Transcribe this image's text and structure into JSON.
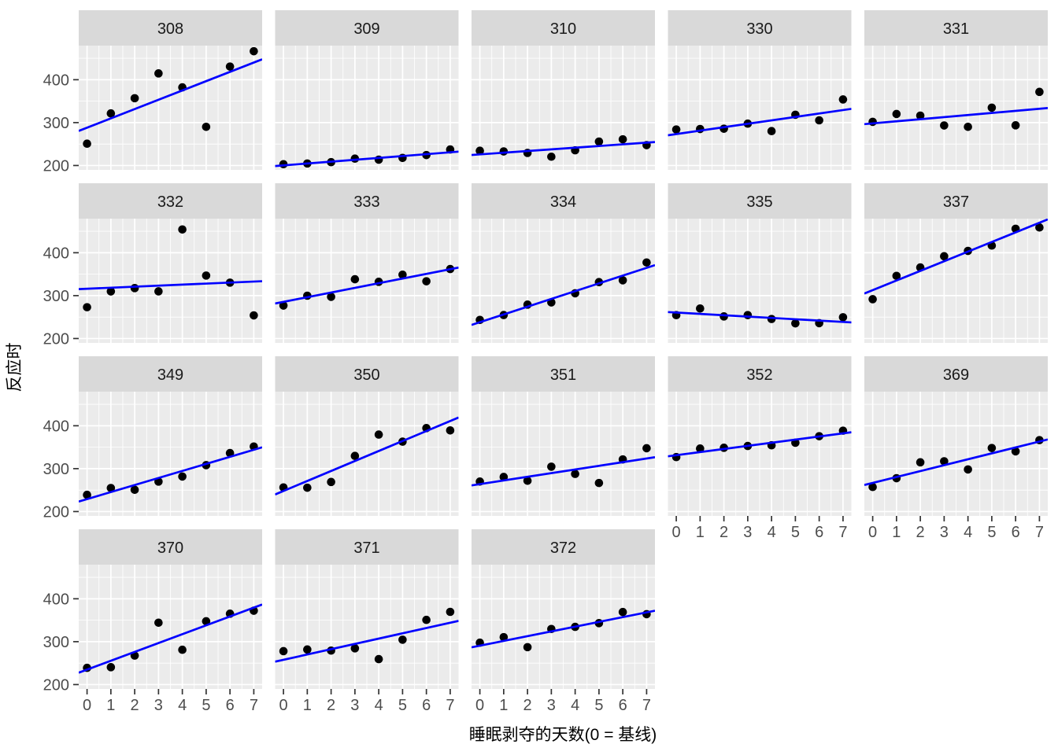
{
  "chart_data": {
    "type": "scatter",
    "title": "",
    "xlabel": "睡眠剥夺的天数(0 = 基线)",
    "ylabel": "反应时",
    "facet_variable": "subject-id",
    "facet_columns": 5,
    "x": [
      0,
      1,
      2,
      3,
      4,
      5,
      6,
      7
    ],
    "x_ticks": [
      "0",
      "1",
      "2",
      "3",
      "4",
      "5",
      "6",
      "7"
    ],
    "y_ticks": [
      "200",
      "300",
      "400"
    ],
    "x_domain": [
      -0.35,
      7.35
    ],
    "y_domain": [
      189.8,
      479.5
    ],
    "x_minor": [
      0.5,
      1.5,
      2.5,
      3.5,
      4.5,
      5.5,
      6.5
    ],
    "y_minor": [
      250,
      350,
      450
    ],
    "grid": "major and minor, white on grey panel",
    "legend_position": "none",
    "smooth": "per-facet linear regression line (lm, no confidence band, full panel range)",
    "facets": [
      {
        "label": "308",
        "values": [
          250.8,
          321.4,
          356.9,
          414.7,
          382.2,
          290.1,
          430.6,
          466.4
        ]
      },
      {
        "label": "309",
        "values": [
          203.0,
          204.7,
          207.7,
          216.0,
          213.6,
          217.7,
          224.3,
          237.3
        ]
      },
      {
        "label": "310",
        "values": [
          234.3,
          232.8,
          229.3,
          220.5,
          235.4,
          255.8,
          261.0,
          247.5
        ]
      },
      {
        "label": "330",
        "values": [
          283.9,
          285.1,
          285.8,
          297.6,
          280.2,
          318.3,
          305.3,
          354.0
        ]
      },
      {
        "label": "331",
        "values": [
          301.8,
          320.1,
          316.3,
          293.3,
          290.1,
          334.8,
          293.7,
          371.6
        ]
      },
      {
        "label": "332",
        "values": [
          273.0,
          309.8,
          317.5,
          310.0,
          454.2,
          346.8,
          330.3,
          253.9
        ]
      },
      {
        "label": "333",
        "values": [
          276.8,
          299.8,
          297.2,
          338.2,
          332.2,
          348.8,
          333.4,
          362.0
        ]
      },
      {
        "label": "334",
        "values": [
          243.4,
          254.7,
          279.0,
          284.2,
          305.5,
          331.5,
          335.7,
          377.3
        ]
      },
      {
        "label": "335",
        "values": [
          254.5,
          270.0,
          251.5,
          254.6,
          245.5,
          235.3,
          235.8,
          249.6
        ]
      },
      {
        "label": "337",
        "values": [
          291.6,
          346.1,
          365.7,
          391.8,
          404.3,
          416.7,
          455.9,
          458.9
        ]
      },
      {
        "label": "349",
        "values": [
          238.9,
          254.9,
          250.7,
          269.8,
          281.6,
          308.1,
          336.3,
          351.6
        ]
      },
      {
        "label": "350",
        "values": [
          256.2,
          255.5,
          268.9,
          329.7,
          379.4,
          362.9,
          394.5,
          389.1
        ]
      },
      {
        "label": "351",
        "values": [
          269.9,
          280.6,
          271.8,
          304.6,
          287.7,
          266.6,
          321.5,
          347.6
        ]
      },
      {
        "label": "352",
        "values": [
          326.9,
          346.9,
          348.7,
          352.8,
          354.4,
          360.4,
          375.6,
          388.5
        ]
      },
      {
        "label": "369",
        "values": [
          257.2,
          277.7,
          314.8,
          317.2,
          298.1,
          348.1,
          340.3,
          366.5
        ]
      },
      {
        "label": "370",
        "values": [
          238.9,
          240.5,
          267.5,
          344.2,
          281.1,
          347.6,
          365.2,
          372.2
        ]
      },
      {
        "label": "371",
        "values": [
          277.9,
          281.8,
          279.2,
          284.5,
          259.3,
          304.6,
          350.8,
          369.5
        ]
      },
      {
        "label": "372",
        "values": [
          297.6,
          310.6,
          287.2,
          329.6,
          334.5,
          343.2,
          369.1,
          364.1
        ]
      }
    ],
    "colors": {
      "point": "#000000",
      "regression_line": "#0000FF",
      "panel_background": "#EBEBEB",
      "strip_background": "#D9D9D9",
      "grid_line": "#FFFFFF",
      "axis_text": "#4D4D4D",
      "strip_text": "#1A1A1A",
      "axis_title": "#000000",
      "tick_mark": "#333333",
      "plot_background": "#FFFFFF"
    }
  }
}
